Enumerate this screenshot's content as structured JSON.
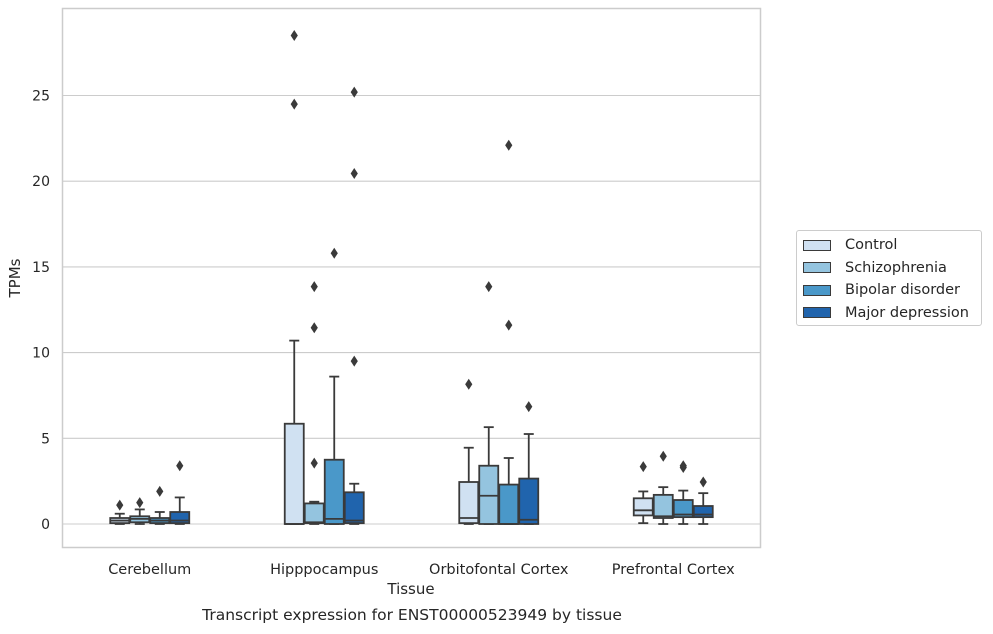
{
  "chart_data": {
    "type": "box",
    "title": "",
    "caption": "Transcript expression for ENST00000523949 by tissue",
    "xlabel": "Tissue",
    "ylabel": "TPMs",
    "ylim": [
      -1.4,
      30.1
    ],
    "yticks": [
      0,
      5,
      10,
      15,
      20,
      25
    ],
    "grid": "horizontal",
    "legend_placement": "center-right",
    "categories": [
      "Cerebellum",
      "Hipppocampus",
      "Orbitofontal Cortex",
      "Prefrontal Cortex"
    ],
    "series": [
      {
        "name": "Control",
        "color": "#d0e1f2",
        "boxes": [
          {
            "whislo": 0.0,
            "q1": 0.05,
            "med": 0.2,
            "q3": 0.35,
            "whishi": 0.6,
            "fliers": [
              1.1
            ]
          },
          {
            "whislo": 0.0,
            "q1": 0.0,
            "med": 0.0,
            "q3": 5.85,
            "whishi": 10.7,
            "fliers": [
              24.5,
              28.5
            ]
          },
          {
            "whislo": 0.0,
            "q1": 0.05,
            "med": 0.35,
            "q3": 2.45,
            "whishi": 4.45,
            "fliers": [
              8.15
            ]
          },
          {
            "whislo": 0.05,
            "q1": 0.5,
            "med": 0.8,
            "q3": 1.5,
            "whishi": 1.9,
            "fliers": [
              3.35
            ]
          }
        ]
      },
      {
        "name": "Schizophrenia",
        "color": "#94c4df",
        "boxes": [
          {
            "whislo": 0.0,
            "q1": 0.1,
            "med": 0.3,
            "q3": 0.45,
            "whishi": 0.85,
            "fliers": [
              1.25
            ]
          },
          {
            "whislo": 0.0,
            "q1": 0.05,
            "med": 0.1,
            "q3": 1.2,
            "whishi": 1.3,
            "fliers": [
              3.55,
              11.45,
              13.85
            ]
          },
          {
            "whislo": 0.0,
            "q1": 0.0,
            "med": 1.65,
            "q3": 3.4,
            "whishi": 5.65,
            "fliers": [
              13.85
            ]
          },
          {
            "whislo": 0.0,
            "q1": 0.35,
            "med": 0.45,
            "q3": 1.7,
            "whishi": 2.15,
            "fliers": [
              3.95
            ]
          }
        ]
      },
      {
        "name": "Bipolar disorder",
        "color": "#4a98c9",
        "boxes": [
          {
            "whislo": 0.0,
            "q1": 0.05,
            "med": 0.2,
            "q3": 0.35,
            "whishi": 0.7,
            "fliers": [
              1.9
            ]
          },
          {
            "whislo": 0.0,
            "q1": 0.0,
            "med": 0.3,
            "q3": 3.75,
            "whishi": 8.6,
            "fliers": [
              15.8
            ]
          },
          {
            "whislo": 0.0,
            "q1": 0.0,
            "med": 0.0,
            "q3": 2.3,
            "whishi": 3.85,
            "fliers": [
              11.6,
              22.1
            ]
          },
          {
            "whislo": 0.0,
            "q1": 0.4,
            "med": 0.55,
            "q3": 1.4,
            "whishi": 1.95,
            "fliers": [
              3.3,
              3.4
            ]
          }
        ]
      },
      {
        "name": "Major depression",
        "color": "#2064ad",
        "boxes": [
          {
            "whislo": 0.0,
            "q1": 0.05,
            "med": 0.2,
            "q3": 0.7,
            "whishi": 1.55,
            "fliers": [
              3.4
            ]
          },
          {
            "whislo": 0.0,
            "q1": 0.05,
            "med": 0.2,
            "q3": 1.85,
            "whishi": 2.35,
            "fliers": [
              9.5,
              20.45,
              25.2
            ]
          },
          {
            "whislo": 0.0,
            "q1": 0.0,
            "med": 0.25,
            "q3": 2.65,
            "whishi": 5.25,
            "fliers": [
              6.85
            ]
          },
          {
            "whislo": 0.0,
            "q1": 0.4,
            "med": 0.55,
            "q3": 1.05,
            "whishi": 1.8,
            "fliers": [
              2.45
            ]
          }
        ]
      }
    ]
  }
}
